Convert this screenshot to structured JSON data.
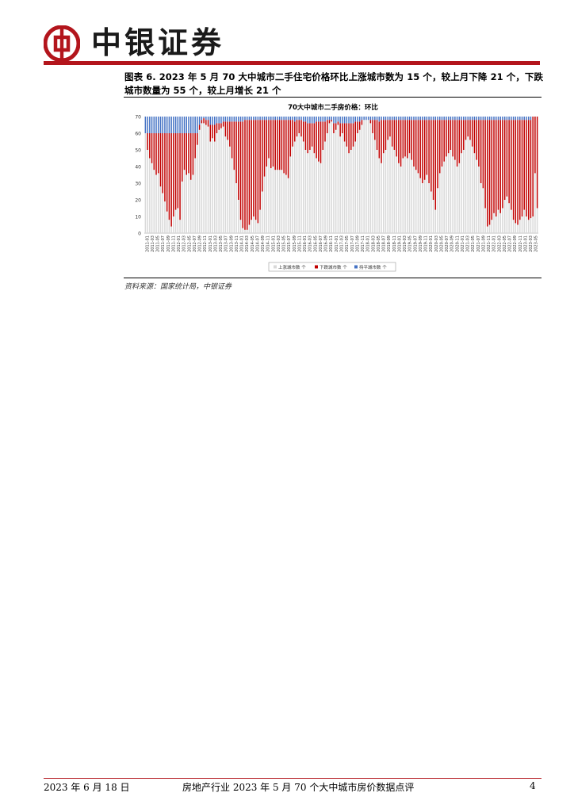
{
  "header": {
    "company_name": "中银证券"
  },
  "figure": {
    "caption": "图表 6. 2023 年 5 月 70 大中城市二手住宅价格环比上涨城市数为 15 个，较上月下降 21 个，下跌城市数量为 55 个，较上月增长 21 个",
    "source": "资料来源：国家统计局，中银证券"
  },
  "colors": {
    "brand_red": "#b3151c",
    "up": "#d9d9d9",
    "down": "#c00000",
    "flat": "#4472c4"
  },
  "chart_data": {
    "type": "bar",
    "stacked": true,
    "title": "70大中城市二手房价格：环比",
    "ylim": [
      0,
      70
    ],
    "yticks": [
      0,
      10,
      20,
      30,
      40,
      50,
      60,
      70
    ],
    "x_tick_labels": [
      "2011-01",
      "2011-03",
      "2011-05",
      "2011-07",
      "2011-09",
      "2011-11",
      "2012-01",
      "2012-03",
      "2012-05",
      "2012-07",
      "2012-09",
      "2012-11",
      "2013-01",
      "2013-03",
      "2013-05",
      "2013-07",
      "2013-09",
      "2013-11",
      "2014-01",
      "2014-03",
      "2014-05",
      "2014-07",
      "2014-09",
      "2014-11",
      "2015-01",
      "2015-03",
      "2015-05",
      "2015-07",
      "2015-09",
      "2015-11",
      "2016-01",
      "2016-03",
      "2016-05",
      "2016-07",
      "2016-09",
      "2016-11",
      "2017-01",
      "2017-03",
      "2017-05",
      "2017-07",
      "2017-09",
      "2017-11",
      "2018-01",
      "2018-03",
      "2018-05",
      "2018-07",
      "2018-09",
      "2018-11",
      "2019-01",
      "2019-03",
      "2019-05",
      "2019-07",
      "2019-09",
      "2019-11",
      "2020-01",
      "2020-03",
      "2020-05",
      "2020-07",
      "2020-09",
      "2020-11",
      "2021-01",
      "2021-03",
      "2021-05",
      "2021-07",
      "2021-09",
      "2021-11",
      "2022-01",
      "2022-03",
      "2022-05",
      "2022-07",
      "2022-09",
      "2022-11",
      "2023-01",
      "2023-03",
      "2023-05"
    ],
    "legend": [
      "上涨城市数 个",
      "下跌城市数 个",
      "持平城市数 个"
    ],
    "legend_position": "bottom",
    "series_up": [
      60,
      50,
      45,
      42,
      38,
      35,
      36,
      28,
      24,
      19,
      13,
      8,
      4,
      10,
      14,
      15,
      8,
      31,
      38,
      35,
      36,
      32,
      35,
      45,
      53,
      62,
      66,
      66,
      65,
      64,
      55,
      57,
      55,
      60,
      62,
      63,
      64,
      58,
      56,
      52,
      45,
      38,
      30,
      20,
      8,
      3,
      2,
      2,
      5,
      8,
      10,
      8,
      6,
      14,
      25,
      34,
      40,
      45,
      39,
      40,
      38,
      38,
      38,
      38,
      36,
      35,
      33,
      46,
      52,
      55,
      58,
      60,
      58,
      55,
      50,
      48,
      50,
      52,
      48,
      45,
      43,
      42,
      50,
      55,
      60,
      66,
      67,
      60,
      62,
      65,
      58,
      60,
      55,
      52,
      48,
      50,
      52,
      55,
      60,
      62,
      65,
      68,
      68,
      68,
      66,
      60,
      56,
      50,
      45,
      42,
      48,
      50,
      56,
      58,
      52,
      50,
      46,
      42,
      40,
      45,
      46,
      45,
      48,
      44,
      40,
      38,
      36,
      33,
      30,
      32,
      35,
      30,
      25,
      20,
      14,
      27,
      36,
      40,
      43,
      46,
      48,
      50,
      46,
      44,
      40,
      42,
      48,
      50,
      56,
      58,
      56,
      52,
      48,
      44,
      40,
      30,
      27,
      15,
      4,
      5,
      8,
      12,
      10,
      14,
      12,
      15,
      20,
      22,
      18,
      14,
      8,
      6,
      5,
      8,
      10,
      14,
      10,
      8,
      9,
      10,
      36,
      15
    ],
    "series_down": [
      0,
      10,
      15,
      18,
      22,
      25,
      24,
      32,
      36,
      41,
      47,
      52,
      56,
      50,
      46,
      45,
      52,
      29,
      22,
      25,
      24,
      28,
      25,
      15,
      7,
      3,
      2,
      3,
      3,
      4,
      10,
      8,
      10,
      6,
      4,
      3,
      3,
      9,
      11,
      15,
      22,
      29,
      37,
      47,
      59,
      64,
      66,
      66,
      63,
      60,
      58,
      60,
      62,
      54,
      43,
      34,
      28,
      23,
      29,
      28,
      30,
      30,
      30,
      30,
      32,
      33,
      35,
      22,
      16,
      12,
      10,
      8,
      10,
      12,
      17,
      18,
      16,
      14,
      18,
      22,
      24,
      25,
      17,
      12,
      8,
      2,
      1,
      6,
      4,
      2,
      8,
      6,
      11,
      14,
      18,
      16,
      14,
      12,
      7,
      5,
      3,
      0,
      0,
      0,
      2,
      8,
      12,
      18,
      22,
      26,
      20,
      18,
      12,
      10,
      16,
      18,
      22,
      26,
      28,
      23,
      22,
      23,
      20,
      24,
      28,
      30,
      32,
      35,
      38,
      36,
      33,
      38,
      43,
      48,
      54,
      41,
      32,
      28,
      25,
      22,
      20,
      18,
      22,
      24,
      28,
      26,
      20,
      18,
      12,
      10,
      12,
      16,
      20,
      24,
      28,
      38,
      41,
      53,
      64,
      63,
      60,
      56,
      58,
      54,
      56,
      53,
      48,
      46,
      50,
      54,
      60,
      62,
      63,
      60,
      58,
      54,
      58,
      60,
      59,
      60,
      34,
      55
    ],
    "series_flat": [
      10,
      10,
      10,
      10,
      10,
      10,
      10,
      10,
      10,
      10,
      10,
      10,
      10,
      10,
      10,
      10,
      10,
      10,
      10,
      10,
      10,
      10,
      10,
      10,
      10,
      5,
      2,
      1,
      2,
      2,
      5,
      5,
      5,
      4,
      4,
      4,
      3,
      3,
      3,
      3,
      3,
      3,
      3,
      3,
      3,
      3,
      2,
      2,
      2,
      2,
      2,
      2,
      2,
      2,
      2,
      2,
      2,
      2,
      2,
      2,
      2,
      2,
      2,
      2,
      2,
      2,
      2,
      2,
      2,
      3,
      2,
      2,
      2,
      3,
      3,
      4,
      4,
      4,
      4,
      3,
      3,
      3,
      3,
      3,
      2,
      2,
      2,
      4,
      4,
      3,
      4,
      4,
      4,
      4,
      4,
      4,
      4,
      3,
      3,
      3,
      2,
      2,
      2,
      2,
      2,
      2,
      2,
      2,
      3,
      2,
      2,
      2,
      2,
      2,
      2,
      2,
      2,
      2,
      2,
      2,
      2,
      2,
      2,
      2,
      2,
      2,
      2,
      2,
      2,
      2,
      2,
      2,
      2,
      2,
      2,
      2,
      2,
      2,
      2,
      2,
      2,
      2,
      2,
      2,
      2,
      2,
      2,
      2,
      2,
      2,
      2,
      2,
      2,
      2,
      2,
      2,
      2,
      2,
      2,
      2,
      2,
      2,
      2,
      2,
      2,
      2,
      2,
      2,
      2,
      2,
      2,
      2,
      2,
      2,
      2,
      2,
      2,
      2,
      2,
      0,
      0,
      0
    ]
  },
  "footer": {
    "date": "2023 年 6 月 18 日",
    "title": "房地产行业 2023 年 5 月 70 个大中城市房价数据点评",
    "page": "4"
  }
}
